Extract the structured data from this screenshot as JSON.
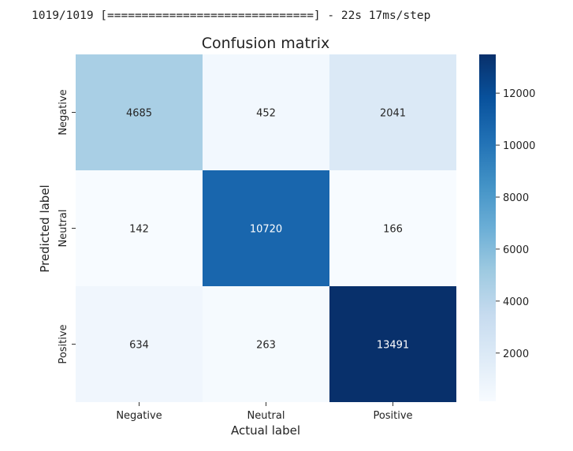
{
  "console_line": "1019/1019 [==============================] - 22s 17ms/step",
  "chart_data": {
    "type": "heatmap",
    "title": "Confusion matrix",
    "xlabel": "Actual label",
    "ylabel": "Predicted label",
    "x_categories": [
      "Negative",
      "Neutral",
      "Positive"
    ],
    "y_categories": [
      "Negative",
      "Neutral",
      "Positive"
    ],
    "values": [
      [
        4685,
        452,
        2041
      ],
      [
        142,
        10720,
        166
      ],
      [
        634,
        263,
        13491
      ]
    ],
    "colorbar": {
      "range": [
        142,
        13491
      ],
      "ticks": [
        2000,
        4000,
        6000,
        8000,
        10000,
        12000
      ],
      "colormap": "Blues"
    },
    "grid": false,
    "legend": "colorbar-right"
  }
}
